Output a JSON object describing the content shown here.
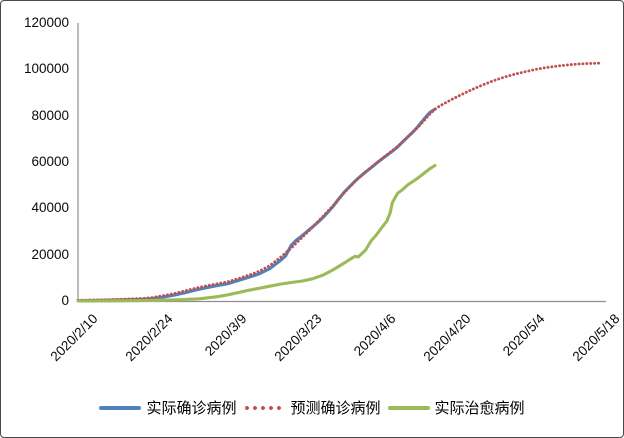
{
  "chart_data": {
    "type": "line",
    "title": "",
    "xlabel": "",
    "ylabel": "",
    "ylim": [
      0,
      120000
    ],
    "grid": false,
    "axis_color": "#8e8e8e",
    "y_tick_labels": [
      "120000",
      "100000",
      "80000",
      "60000",
      "40000",
      "20000",
      "0"
    ],
    "x_tick_labels": [
      "2020/2/10",
      "2020/2/24",
      "2020/3/9",
      "2020/3/23",
      "2020/4/6",
      "2020/4/20",
      "2020/5/4",
      "2020/5/18"
    ],
    "x_tick_days": [
      0,
      14,
      28,
      42,
      56,
      70,
      84,
      98
    ],
    "x_start_date": "2020/2/10",
    "x_unit": "days",
    "legend": {
      "position": "bottom"
    },
    "series": [
      {
        "name": "实际确诊病例",
        "color": "#4F81BD",
        "style": "solid",
        "points": [
          [
            0,
            200
          ],
          [
            3,
            280
          ],
          [
            6,
            380
          ],
          [
            9,
            520
          ],
          [
            12,
            750
          ],
          [
            14,
            1100
          ],
          [
            16,
            1700
          ],
          [
            18,
            2500
          ],
          [
            20,
            3500
          ],
          [
            22,
            4700
          ],
          [
            24,
            5700
          ],
          [
            26,
            6600
          ],
          [
            28,
            7400
          ],
          [
            30,
            8800
          ],
          [
            32,
            10200
          ],
          [
            34,
            11700
          ],
          [
            36,
            14000
          ],
          [
            38,
            17500
          ],
          [
            39,
            19500
          ],
          [
            40,
            24000
          ],
          [
            41,
            26300
          ],
          [
            42,
            28000
          ],
          [
            43,
            30000
          ],
          [
            44,
            31900
          ],
          [
            45,
            33900
          ],
          [
            46,
            36100
          ],
          [
            47,
            38500
          ],
          [
            48,
            41200
          ],
          [
            49,
            44200
          ],
          [
            50,
            47000
          ],
          [
            51,
            49400
          ],
          [
            52,
            51700
          ],
          [
            53,
            53800
          ],
          [
            54,
            55700
          ],
          [
            55,
            57500
          ],
          [
            56,
            59400
          ],
          [
            57,
            61200
          ],
          [
            58,
            62900
          ],
          [
            59,
            64600
          ],
          [
            60,
            66500
          ],
          [
            61,
            68800
          ],
          [
            62,
            71000
          ],
          [
            63,
            73200
          ],
          [
            64,
            75800
          ],
          [
            65,
            78600
          ],
          [
            66,
            81300
          ],
          [
            67,
            82800
          ]
        ]
      },
      {
        "name": "预测确诊病例",
        "color": "#C0504D",
        "style": "dotted",
        "points": [
          [
            0,
            300
          ],
          [
            3,
            420
          ],
          [
            6,
            580
          ],
          [
            9,
            800
          ],
          [
            12,
            1100
          ],
          [
            14,
            1500
          ],
          [
            16,
            2300
          ],
          [
            18,
            3200
          ],
          [
            20,
            4300
          ],
          [
            22,
            5500
          ],
          [
            24,
            6500
          ],
          [
            26,
            7400
          ],
          [
            28,
            8200
          ],
          [
            30,
            9600
          ],
          [
            32,
            11100
          ],
          [
            34,
            12800
          ],
          [
            36,
            15300
          ],
          [
            38,
            18800
          ],
          [
            40,
            22800
          ],
          [
            42,
            27300
          ],
          [
            44,
            31800
          ],
          [
            46,
            36500
          ],
          [
            48,
            41500
          ],
          [
            50,
            46800
          ],
          [
            52,
            51600
          ],
          [
            54,
            55800
          ],
          [
            56,
            59500
          ],
          [
            58,
            63100
          ],
          [
            60,
            66700
          ],
          [
            62,
            71000
          ],
          [
            64,
            75400
          ],
          [
            66,
            80600
          ],
          [
            67,
            82800
          ],
          [
            68,
            84300
          ],
          [
            70,
            86800
          ],
          [
            72,
            89100
          ],
          [
            74,
            91300
          ],
          [
            76,
            93300
          ],
          [
            78,
            95100
          ],
          [
            80,
            96600
          ],
          [
            82,
            97900
          ],
          [
            84,
            99000
          ],
          [
            86,
            100000
          ],
          [
            88,
            100800
          ],
          [
            90,
            101400
          ],
          [
            92,
            101900
          ],
          [
            94,
            102300
          ],
          [
            96,
            102500
          ],
          [
            98,
            102700
          ]
        ]
      },
      {
        "name": "实际治愈病例",
        "color": "#9BBB59",
        "style": "solid",
        "points": [
          [
            0,
            30
          ],
          [
            6,
            60
          ],
          [
            10,
            120
          ],
          [
            14,
            260
          ],
          [
            17,
            420
          ],
          [
            20,
            650
          ],
          [
            23,
            1000
          ],
          [
            26,
            1800
          ],
          [
            28,
            2600
          ],
          [
            30,
            3600
          ],
          [
            32,
            4600
          ],
          [
            34,
            5500
          ],
          [
            36,
            6400
          ],
          [
            38,
            7300
          ],
          [
            40,
            8000
          ],
          [
            42,
            8600
          ],
          [
            44,
            9600
          ],
          [
            46,
            11200
          ],
          [
            48,
            13600
          ],
          [
            50,
            16400
          ],
          [
            51,
            17900
          ],
          [
            52,
            19300
          ],
          [
            52.6,
            19000
          ],
          [
            54,
            22000
          ],
          [
            55,
            25900
          ],
          [
            56,
            28500
          ],
          [
            57,
            31600
          ],
          [
            58,
            34500
          ],
          [
            58.6,
            38000
          ],
          [
            59,
            42400
          ],
          [
            60,
            46500
          ],
          [
            61,
            48200
          ],
          [
            62,
            50300
          ],
          [
            63,
            51800
          ],
          [
            64,
            53400
          ],
          [
            65,
            55200
          ],
          [
            66,
            57000
          ],
          [
            67,
            58500
          ]
        ]
      }
    ]
  }
}
